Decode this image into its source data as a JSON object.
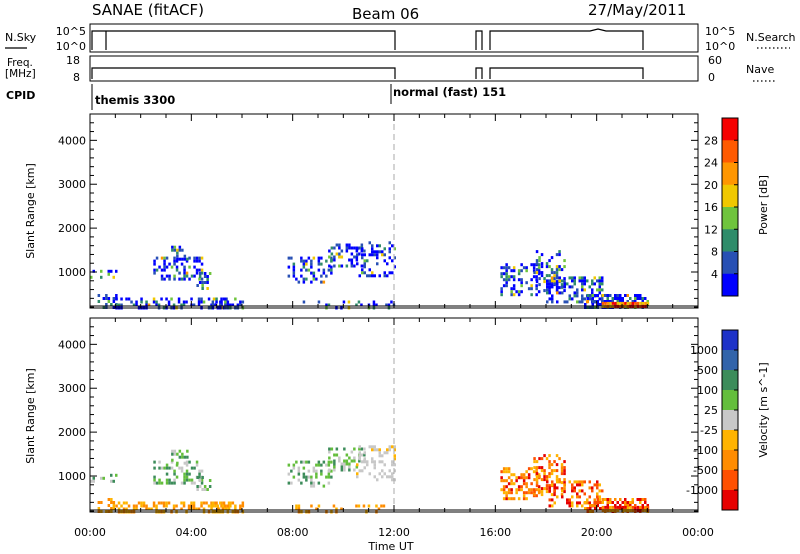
{
  "header": {
    "station": "SANAE (fitACF)",
    "beam": "Beam 06",
    "date": "27/May/2011"
  },
  "sky_panel": {
    "left_label": "N.Sky",
    "left_ticks": [
      "10^5",
      "10^0"
    ],
    "right_label": "N.Search",
    "right_ticks": [
      "10^5",
      "10^0"
    ]
  },
  "freq_panel": {
    "left_label_1": "Freq.",
    "left_label_2": "[MHz]",
    "left_ticks": [
      "18",
      "8"
    ],
    "right_label": "Nave",
    "right_ticks": [
      "60",
      "0"
    ]
  },
  "cpid": {
    "label": "CPID",
    "modes": [
      "themis 3300",
      "normal (fast) 151"
    ]
  },
  "chart_data": {
    "type": "heatmap",
    "x_axis": {
      "label": "Time UT",
      "range_hours": [
        0,
        24
      ],
      "ticks": [
        "00:00",
        "04:00",
        "08:00",
        "12:00",
        "16:00",
        "20:00",
        "00:00"
      ]
    },
    "y_axis": {
      "label": "Slant Range [km]",
      "range_km": [
        180,
        4600
      ],
      "ticks": [
        "1000",
        "2000",
        "3000",
        "4000"
      ]
    },
    "mode_change_hour": 12,
    "operating_intervals_hours": [
      [
        0.5,
        12.0
      ],
      [
        15.5,
        22.0
      ]
    ],
    "panels": [
      {
        "parameter": "Power [dB]",
        "colorbar_ticks": [
          "4",
          "8",
          "12",
          "16",
          "20",
          "24",
          "28"
        ],
        "colors": [
          "#0000ff",
          "#2850b4",
          "#2f8c6a",
          "#6fc43d",
          "#f0c800",
          "#ff9600",
          "#ff5a00",
          "#f50000"
        ]
      },
      {
        "parameter": "Velocity [m s^-1]",
        "colorbar_ticks": [
          "1000",
          "500",
          "100",
          "25",
          "-25",
          "-100",
          "-500",
          "-1000"
        ],
        "colors": [
          "#1e32c8",
          "#3264aa",
          "#3c8c5a",
          "#64be3c",
          "#c8c8c8",
          "#ffb400",
          "#ff8c00",
          "#ff5000",
          "#e60000"
        ]
      }
    ],
    "scatter_regions": [
      {
        "t0": 0.0,
        "t1": 1.0,
        "r0": 850,
        "r1": 1050,
        "density": 0.4
      },
      {
        "t0": 0.3,
        "t1": 1.0,
        "r0": 180,
        "r1": 500,
        "density": 0.35
      },
      {
        "t0": 1.0,
        "t1": 5.5,
        "r0": 180,
        "r1": 420,
        "density": 0.45
      },
      {
        "t0": 2.5,
        "t1": 4.4,
        "r0": 850,
        "r1": 1350,
        "density": 0.4
      },
      {
        "t0": 3.2,
        "t1": 3.8,
        "r0": 1300,
        "r1": 1600,
        "density": 0.45
      },
      {
        "t0": 4.2,
        "t1": 4.7,
        "r0": 600,
        "r1": 1000,
        "density": 0.35
      },
      {
        "t0": 4.8,
        "t1": 6.0,
        "r0": 200,
        "r1": 420,
        "density": 0.55
      },
      {
        "t0": 7.8,
        "t1": 9.5,
        "r0": 800,
        "r1": 1350,
        "density": 0.35
      },
      {
        "t0": 9.4,
        "t1": 10.8,
        "r0": 1150,
        "r1": 1650,
        "density": 0.35
      },
      {
        "t0": 10.5,
        "t1": 12.0,
        "r0": 900,
        "r1": 1700,
        "density": 0.3
      },
      {
        "t0": 8.0,
        "t1": 12.0,
        "r0": 180,
        "r1": 350,
        "density": 0.15
      },
      {
        "t0": 16.2,
        "t1": 17.7,
        "r0": 500,
        "r1": 1200,
        "density": 0.45
      },
      {
        "t0": 17.5,
        "t1": 18.7,
        "r0": 600,
        "r1": 1500,
        "density": 0.4
      },
      {
        "t0": 18.0,
        "t1": 20.2,
        "r0": 300,
        "r1": 900,
        "density": 0.45
      },
      {
        "t0": 19.5,
        "t1": 22.0,
        "r0": 200,
        "r1": 500,
        "density": 0.6
      },
      {
        "t0": 20.2,
        "t1": 22.0,
        "r0": 200,
        "r1": 320,
        "density": 0.9
      }
    ]
  }
}
